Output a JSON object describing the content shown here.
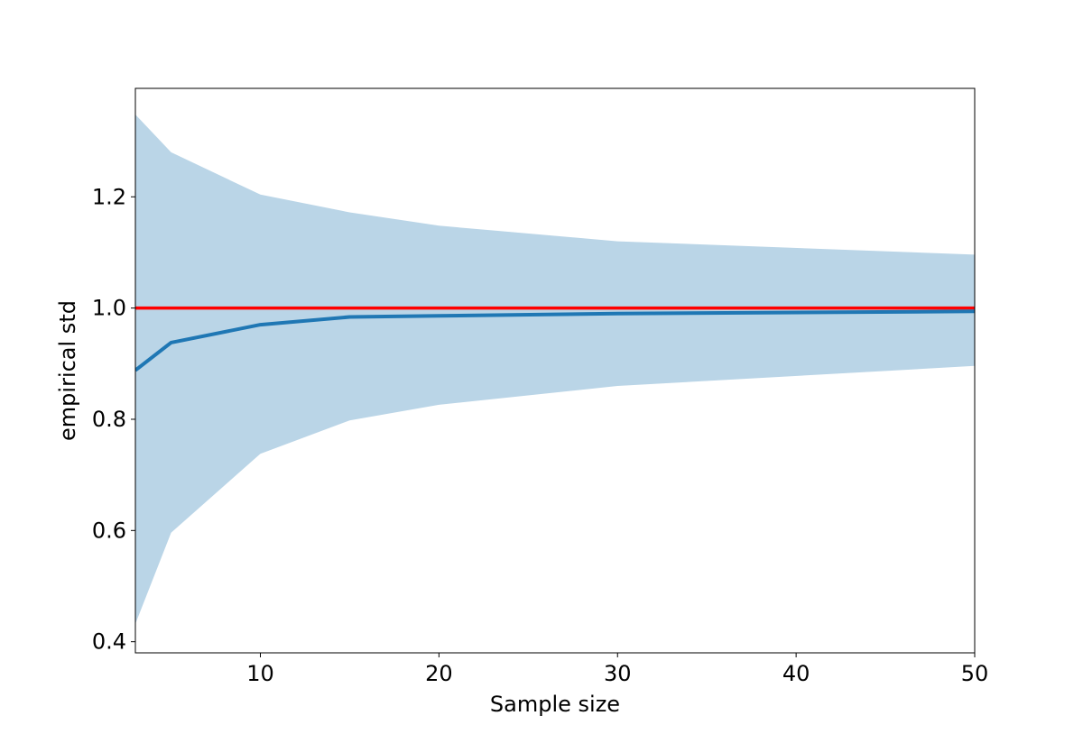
{
  "chart_data": {
    "type": "line",
    "title": "",
    "xlabel": "Sample size",
    "ylabel": "empirical std",
    "xlim": [
      3,
      50
    ],
    "ylim": [
      0.38,
      1.395
    ],
    "x_ticks": [
      10,
      20,
      30,
      40,
      50
    ],
    "x_tick_labels": [
      "10",
      "20",
      "30",
      "40",
      "50"
    ],
    "y_ticks": [
      0.4,
      0.6,
      0.8,
      1.0,
      1.2
    ],
    "y_tick_labels": [
      "0.4",
      "0.6",
      "0.8",
      "1.0",
      "1.2"
    ],
    "grid": false,
    "x": [
      3,
      5,
      10,
      15,
      20,
      30,
      50
    ],
    "band": {
      "color": "#bad5e7",
      "upper": [
        1.348,
        1.28,
        1.204,
        1.172,
        1.148,
        1.12,
        1.096
      ],
      "lower": [
        0.432,
        0.596,
        0.738,
        0.798,
        0.826,
        0.86,
        0.896
      ]
    },
    "series": [
      {
        "color": "#1f77b4",
        "values": [
          0.888,
          0.938,
          0.97,
          0.984,
          0.986,
          0.99,
          0.994
        ]
      }
    ],
    "hlines": [
      {
        "y": 1.0,
        "color": "#ff0000"
      }
    ]
  }
}
